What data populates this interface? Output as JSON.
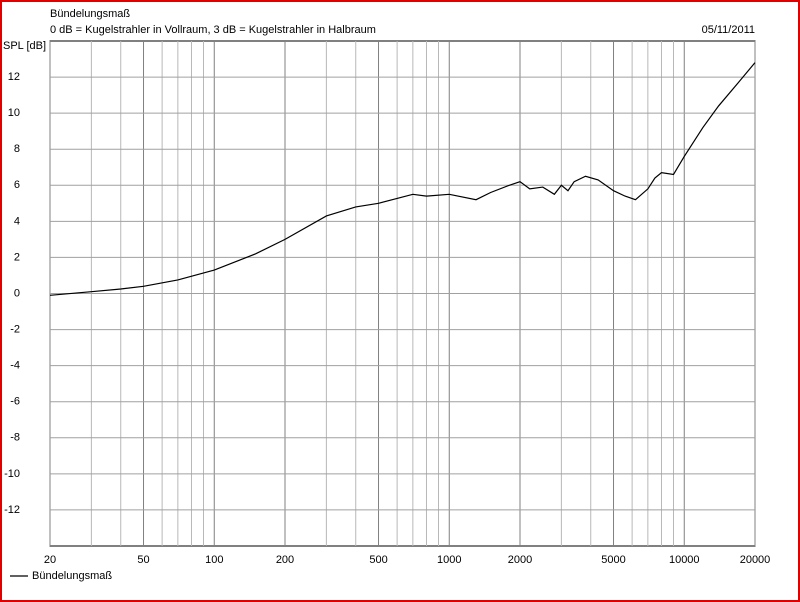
{
  "chart_data": {
    "type": "line",
    "title": "Bündelungsmaß",
    "subtitle": "0 dB = Kugelstrahler in Vollraum, 3 dB = Kugelstrahler in Halbraum",
    "date": "05/11/2011",
    "y_label": "SPL [dB]",
    "x": [
      20,
      30,
      40,
      50,
      70,
      100,
      150,
      200,
      300,
      400,
      500,
      700,
      800,
      1000,
      1300,
      1500,
      1800,
      2000,
      2200,
      2500,
      2800,
      3000,
      3200,
      3400,
      3800,
      4300,
      5000,
      5600,
      6200,
      7000,
      7500,
      8000,
      9000,
      10000,
      12000,
      14000,
      17000,
      20000
    ],
    "series": [
      {
        "name": "Bündelungsmaß",
        "color": "#000000",
        "values": [
          -0.1,
          0.1,
          0.25,
          0.4,
          0.75,
          1.3,
          2.2,
          3.0,
          4.3,
          4.8,
          5.0,
          5.5,
          5.4,
          5.5,
          5.2,
          5.6,
          6.0,
          6.2,
          5.8,
          5.9,
          5.5,
          6.0,
          5.7,
          6.2,
          6.5,
          6.3,
          5.7,
          5.4,
          5.2,
          5.8,
          6.4,
          6.7,
          6.6,
          7.6,
          9.2,
          10.4,
          11.7,
          12.8
        ]
      }
    ],
    "xlim": [
      20,
      20000
    ],
    "ylim": [
      -14,
      14
    ],
    "xscale": "log",
    "xticks": [
      20,
      50,
      100,
      200,
      500,
      1000,
      2000,
      5000,
      10000,
      20000
    ],
    "xminor": [
      30,
      40,
      60,
      70,
      80,
      90,
      300,
      400,
      600,
      700,
      800,
      900,
      3000,
      4000,
      6000,
      7000,
      8000,
      9000
    ],
    "yticks": [
      -12,
      -10,
      -8,
      -6,
      -4,
      -2,
      0,
      2,
      4,
      6,
      8,
      10,
      12
    ],
    "grid": true,
    "legend": "bottom-left"
  }
}
